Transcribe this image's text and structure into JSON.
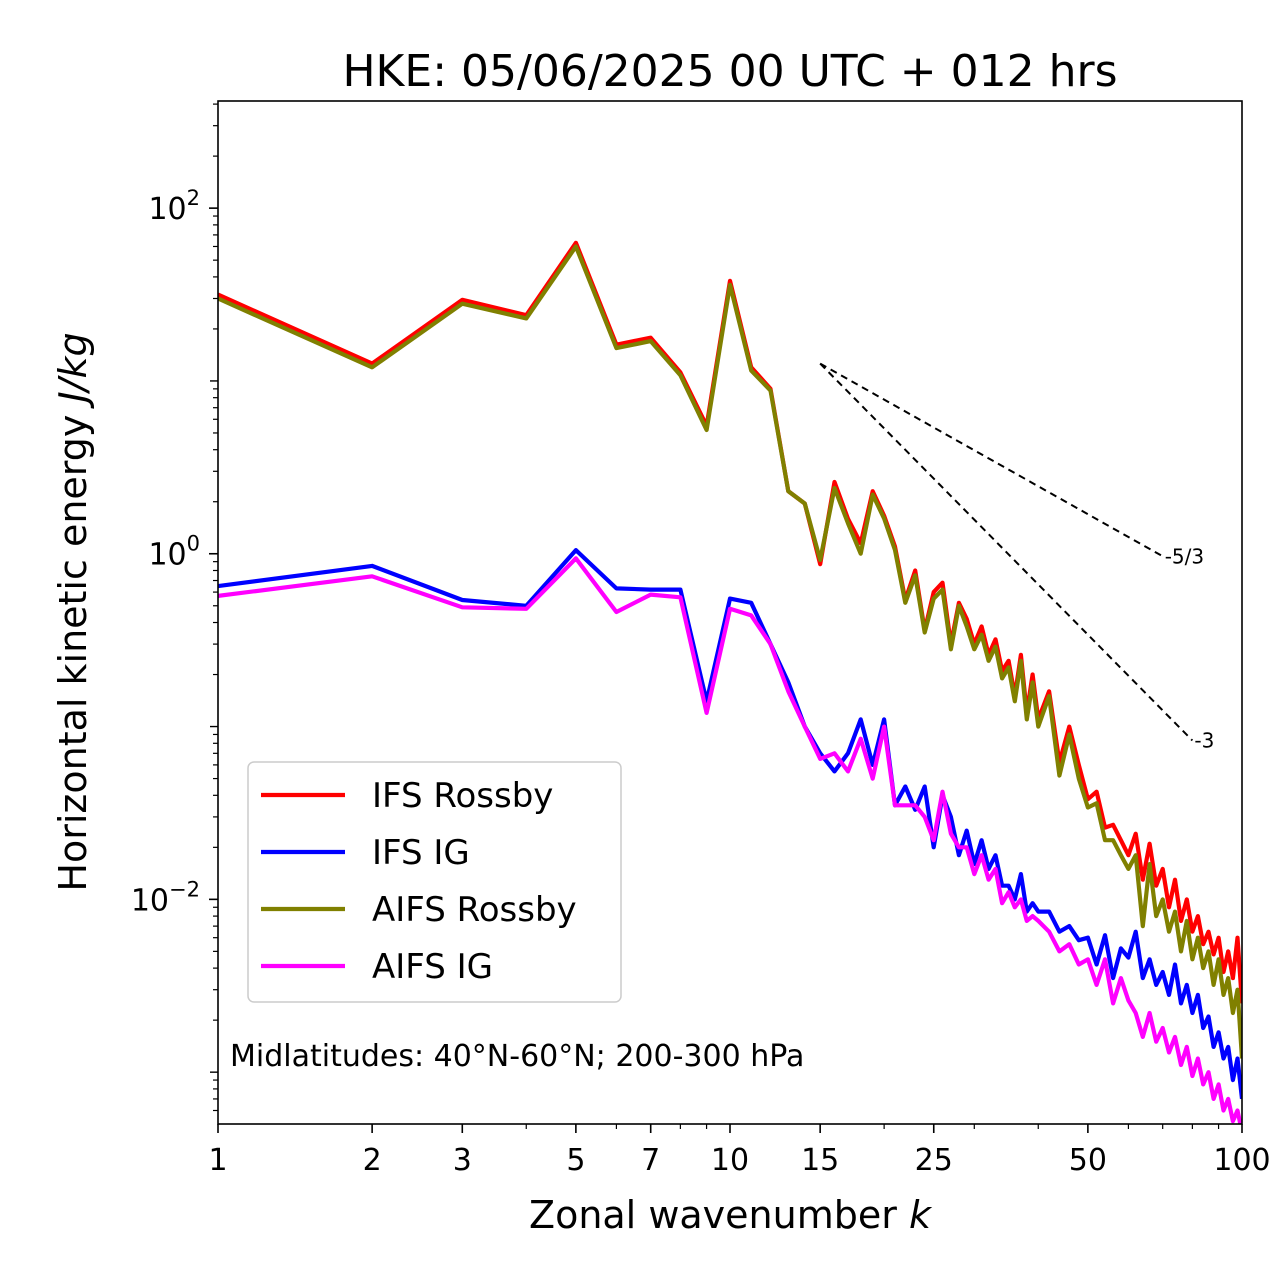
{
  "chart_data": {
    "type": "line",
    "title": "HKE: 05/06/2025 00 UTC + 012 hrs",
    "xlabel": "Zonal wavenumber",
    "xlabel_var": "k",
    "ylabel": "Horizontal kinetic energy",
    "ylabel_unit": "J/kg",
    "xscale": "log",
    "yscale": "log",
    "xlim": [
      1,
      100
    ],
    "ylim_log10": [
      -3.3,
      2.62
    ],
    "x_ticks": [
      {
        "value": 1,
        "label": "1"
      },
      {
        "value": 2,
        "label": "2"
      },
      {
        "value": 3,
        "label": "3"
      },
      {
        "value": 5,
        "label": "5"
      },
      {
        "value": 7,
        "label": "7"
      },
      {
        "value": 10,
        "label": "10"
      },
      {
        "value": 15,
        "label": "15"
      },
      {
        "value": 25,
        "label": "25"
      },
      {
        "value": 50,
        "label": "50"
      },
      {
        "value": 100,
        "label": "100"
      }
    ],
    "y_ticks": [
      {
        "value": 100,
        "base": "10",
        "exp": "2"
      },
      {
        "value": 1,
        "base": "10",
        "exp": "0"
      },
      {
        "value": 0.01,
        "base": "10",
        "exp": "−2"
      }
    ],
    "annotation": "Midlatitudes: 40°N-60°N; 200-300 hPa",
    "legend_position": "lower-left",
    "reference_lines": [
      {
        "label": "-5/3",
        "slope": -1.6667,
        "x0": 15,
        "y0": 12.6,
        "x1": 70
      },
      {
        "label": "-3",
        "slope": -3,
        "x0": 15,
        "y0": 12.6,
        "x1": 80
      }
    ],
    "series": [
      {
        "name": "IFS Rossby",
        "color": "#ff0000",
        "x": [
          1,
          2,
          3,
          4,
          5,
          6,
          7,
          8,
          9,
          10,
          11,
          12,
          13,
          14,
          15,
          16,
          17,
          18,
          19,
          20,
          21,
          22,
          23,
          24,
          25,
          26,
          27,
          28,
          29,
          30,
          31,
          32,
          33,
          34,
          35,
          36,
          37,
          38,
          39,
          40,
          42,
          44,
          46,
          48,
          50,
          52,
          54,
          56,
          58,
          60,
          62,
          64,
          66,
          68,
          70,
          72,
          74,
          76,
          78,
          80,
          82,
          84,
          86,
          88,
          90,
          92,
          94,
          96,
          98,
          100
        ],
        "y": [
          31.6,
          12.6,
          29.5,
          24.0,
          63.0,
          16.2,
          17.8,
          11.2,
          5.5,
          38.0,
          12.0,
          9.0,
          2.3,
          1.95,
          0.87,
          2.6,
          1.59,
          1.15,
          2.3,
          1.66,
          1.1,
          0.54,
          0.8,
          0.36,
          0.6,
          0.68,
          0.3,
          0.52,
          0.42,
          0.3,
          0.38,
          0.26,
          0.32,
          0.21,
          0.24,
          0.15,
          0.26,
          0.12,
          0.2,
          0.11,
          0.16,
          0.062,
          0.1,
          0.06,
          0.038,
          0.042,
          0.026,
          0.027,
          0.022,
          0.018,
          0.024,
          0.013,
          0.021,
          0.012,
          0.015,
          0.009,
          0.013,
          0.0075,
          0.01,
          0.0065,
          0.008,
          0.0055,
          0.0065,
          0.0048,
          0.006,
          0.0038,
          0.005,
          0.0035,
          0.006,
          0.0025
        ]
      },
      {
        "name": "IFS IG",
        "color": "#0000ff",
        "x": [
          1,
          2,
          3,
          4,
          5,
          6,
          7,
          8,
          9,
          10,
          11,
          12,
          13,
          14,
          15,
          16,
          17,
          18,
          19,
          20,
          21,
          22,
          23,
          24,
          25,
          26,
          27,
          28,
          29,
          30,
          31,
          32,
          33,
          34,
          35,
          36,
          37,
          38,
          39,
          40,
          42,
          44,
          46,
          48,
          50,
          52,
          54,
          56,
          58,
          60,
          62,
          64,
          66,
          68,
          70,
          72,
          74,
          76,
          78,
          80,
          82,
          84,
          86,
          88,
          90,
          92,
          94,
          96,
          98,
          100
        ],
        "y": [
          0.65,
          0.85,
          0.54,
          0.5,
          1.05,
          0.63,
          0.62,
          0.62,
          0.14,
          0.55,
          0.52,
          0.3,
          0.18,
          0.1,
          0.07,
          0.055,
          0.07,
          0.11,
          0.06,
          0.11,
          0.035,
          0.045,
          0.033,
          0.045,
          0.02,
          0.04,
          0.03,
          0.018,
          0.025,
          0.016,
          0.022,
          0.015,
          0.018,
          0.012,
          0.012,
          0.01,
          0.014,
          0.0085,
          0.0095,
          0.0085,
          0.0085,
          0.0065,
          0.007,
          0.0058,
          0.006,
          0.0042,
          0.0062,
          0.0035,
          0.0052,
          0.0046,
          0.0065,
          0.0035,
          0.0045,
          0.0032,
          0.0038,
          0.0028,
          0.0042,
          0.0025,
          0.0032,
          0.0022,
          0.0028,
          0.0018,
          0.0021,
          0.0014,
          0.0017,
          0.0012,
          0.0014,
          0.0009,
          0.0012,
          0.0007
        ]
      },
      {
        "name": "AIFS Rossby",
        "color": "#808000",
        "x": [
          1,
          2,
          3,
          4,
          5,
          6,
          7,
          8,
          9,
          10,
          11,
          12,
          13,
          14,
          15,
          16,
          17,
          18,
          19,
          20,
          21,
          22,
          23,
          24,
          25,
          26,
          27,
          28,
          29,
          30,
          31,
          32,
          33,
          34,
          35,
          36,
          37,
          38,
          39,
          40,
          42,
          44,
          46,
          48,
          50,
          52,
          54,
          56,
          58,
          60,
          62,
          64,
          66,
          68,
          70,
          72,
          74,
          76,
          78,
          80,
          82,
          84,
          86,
          88,
          90,
          92,
          94,
          96,
          98,
          100
        ],
        "y": [
          30.0,
          12.0,
          28.0,
          23.0,
          60.0,
          15.5,
          17.0,
          10.8,
          5.2,
          36.0,
          11.5,
          8.8,
          2.3,
          1.95,
          0.92,
          2.4,
          1.5,
          1.0,
          2.2,
          1.6,
          1.05,
          0.52,
          0.75,
          0.35,
          0.55,
          0.62,
          0.28,
          0.5,
          0.38,
          0.28,
          0.34,
          0.24,
          0.29,
          0.19,
          0.22,
          0.14,
          0.24,
          0.11,
          0.18,
          0.1,
          0.15,
          0.052,
          0.09,
          0.05,
          0.034,
          0.036,
          0.022,
          0.022,
          0.018,
          0.015,
          0.018,
          0.007,
          0.016,
          0.008,
          0.01,
          0.0065,
          0.0085,
          0.005,
          0.0075,
          0.0045,
          0.006,
          0.004,
          0.005,
          0.0032,
          0.0045,
          0.0028,
          0.0035,
          0.0022,
          0.003,
          0.0012
        ]
      },
      {
        "name": "AIFS IG",
        "color": "#ff00ff",
        "x": [
          1,
          2,
          3,
          4,
          5,
          6,
          7,
          8,
          9,
          10,
          11,
          12,
          13,
          14,
          15,
          16,
          17,
          18,
          19,
          20,
          21,
          22,
          23,
          24,
          25,
          26,
          27,
          28,
          29,
          30,
          31,
          32,
          33,
          34,
          35,
          36,
          37,
          38,
          39,
          40,
          42,
          44,
          46,
          48,
          50,
          52,
          54,
          56,
          58,
          60,
          62,
          64,
          66,
          68,
          70,
          72,
          74,
          76,
          78,
          80,
          82,
          84,
          86,
          88,
          90,
          92,
          94,
          96,
          98,
          100
        ],
        "y": [
          0.57,
          0.74,
          0.49,
          0.48,
          0.94,
          0.46,
          0.58,
          0.56,
          0.12,
          0.48,
          0.44,
          0.3,
          0.16,
          0.1,
          0.065,
          0.07,
          0.055,
          0.085,
          0.05,
          0.1,
          0.035,
          0.035,
          0.035,
          0.03,
          0.022,
          0.042,
          0.024,
          0.02,
          0.02,
          0.014,
          0.018,
          0.013,
          0.015,
          0.0095,
          0.011,
          0.009,
          0.01,
          0.0075,
          0.008,
          0.0075,
          0.0065,
          0.005,
          0.0055,
          0.0042,
          0.0045,
          0.0032,
          0.0045,
          0.0025,
          0.0035,
          0.0026,
          0.0022,
          0.0016,
          0.0022,
          0.0015,
          0.0018,
          0.0013,
          0.0016,
          0.0011,
          0.0014,
          0.00095,
          0.0012,
          0.00085,
          0.001,
          0.0007,
          0.00085,
          0.0006,
          0.0007,
          0.00052,
          0.0006,
          0.00045
        ]
      }
    ]
  }
}
